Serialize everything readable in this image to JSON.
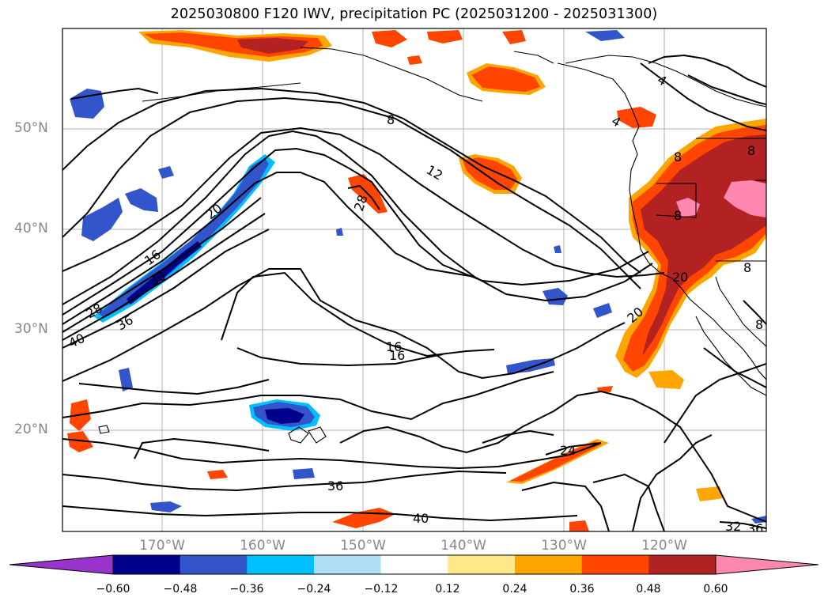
{
  "title": "2025030800 F120 IWV, precipitation PC (2025031200 - 2025031300)",
  "lat_labels": [
    "50°N",
    "40°N",
    "30°N",
    "20°N"
  ],
  "lon_labels": [
    "170°W",
    "160°W",
    "150°W",
    "140°W",
    "130°W",
    "120°W"
  ],
  "contour_labels": [
    "8",
    "12",
    "4",
    "4",
    "8",
    "28",
    "20",
    "16",
    "16",
    "36",
    "40",
    "28",
    "30",
    "20",
    "16",
    "24",
    "36",
    "40",
    "32",
    "36",
    "8",
    "8",
    "8",
    "8",
    "20"
  ],
  "colorbar": {
    "colors": [
      "#9933cc",
      "#00008b",
      "#3355cc",
      "#00bfff",
      "#b0e0f8",
      "#ffffff",
      "#ffe88a",
      "#ffa500",
      "#ff4500",
      "#b22222",
      "#ff88b0"
    ],
    "ticks": [
      "−0.60",
      "−0.48",
      "−0.36",
      "−0.24",
      "−0.12",
      "0.12",
      "0.24",
      "0.36",
      "0.48",
      "0.60"
    ]
  }
}
